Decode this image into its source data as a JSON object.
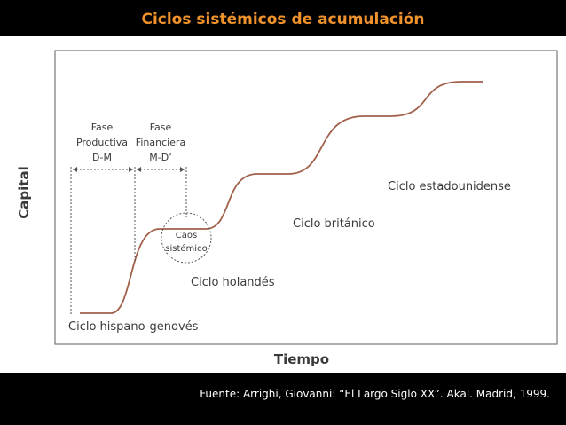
{
  "header": {
    "title": "Ciclos sistémicos de acumulación"
  },
  "diagram": {
    "y_axis_label": "Capital",
    "x_axis_label": "Tiempo",
    "phases": [
      {
        "lines": [
          "Fase",
          "Productiva",
          "D-M"
        ]
      },
      {
        "lines": [
          "Fase",
          "Financiera",
          "M-D’"
        ]
      }
    ],
    "annotation": {
      "lines": [
        "Caos",
        "sistémico"
      ]
    },
    "cycles": [
      "Ciclo hispano-genovés",
      "Ciclo holandés",
      "Ciclo británico",
      "Ciclo estadounidense"
    ]
  },
  "footer": {
    "source": "Fuente: Arrighi, Giovanni: “El Largo Siglo XX”. Akal. Madrid, 1999."
  }
}
